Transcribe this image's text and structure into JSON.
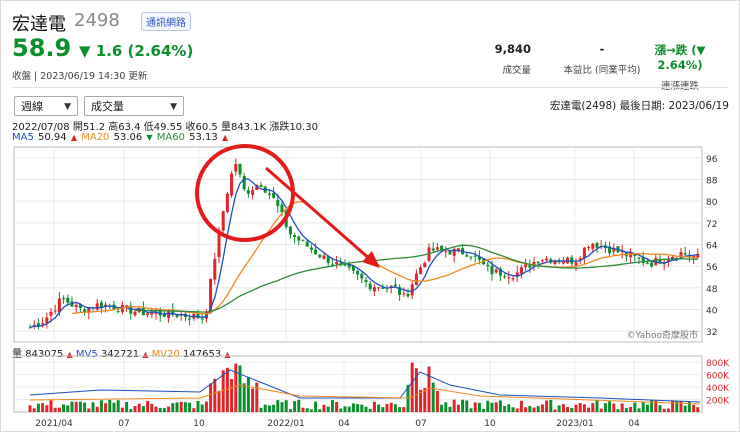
{
  "header": {
    "name": "宏達電",
    "code": "2498",
    "tag": "通訊網路",
    "price": "58.9",
    "change": "▼ 1.6 (2.64%)",
    "updated": "收盤 | 2023/06/19 14:30 更新"
  },
  "stats": [
    {
      "value": "9,840",
      "label": "成交量"
    },
    {
      "value": "-",
      "label": "本益比 (同業平均)"
    },
    {
      "value": "漲→跌 (▼ 2.64%)",
      "label": "連漲連跌"
    }
  ],
  "controls": {
    "period": "週線",
    "indicator": "成交量"
  },
  "chart_info": {
    "corp_date": "宏達電(2498)  最後日期: 2023/06/19",
    "ohlc": "2022/07/08 開51.2 高63.4 低49.55 收60.5 量843.1K 漲跌10.30",
    "ma5_label": "MA5",
    "ma5_value": "50.94",
    "ma20_label": "MA20",
    "ma20_value": "53.06",
    "ma60_label": "MA60",
    "ma60_value": "53.13",
    "vol_label": "量",
    "vol_value": "843075",
    "mv5_label": "MV5",
    "mv5_value": "342721",
    "mv20_label": "MV20",
    "mv20_value": "147653",
    "watermark": "©Yahoo奇摩股市",
    "colors": {
      "up": "#e0242a",
      "down": "#0a8f2c",
      "ma5": "#1f4fbf",
      "ma20": "#f08a1e",
      "ma60": "#2e8b3a",
      "annotation": "#e31b1b"
    }
  },
  "chart_data": [
    {
      "type": "candlestick",
      "y_ticks": [
        "96",
        "88",
        "80",
        "72",
        "64",
        "56",
        "48",
        "40",
        "32"
      ],
      "ylim": [
        28,
        100
      ],
      "x_ticks": [
        "2021/04",
        "07",
        "10",
        "2022/01",
        "04",
        "07",
        "10",
        "2023/01",
        "04"
      ],
      "grid": true,
      "annotation": "red circle around the early-2022 peak with an arrow pointing down-right to the mid-2022 low"
    },
    {
      "type": "bar",
      "series_name": "量",
      "y_ticks": [
        "800K",
        "600K",
        "400K",
        "200K"
      ],
      "ylim": [
        0,
        900000
      ]
    }
  ]
}
